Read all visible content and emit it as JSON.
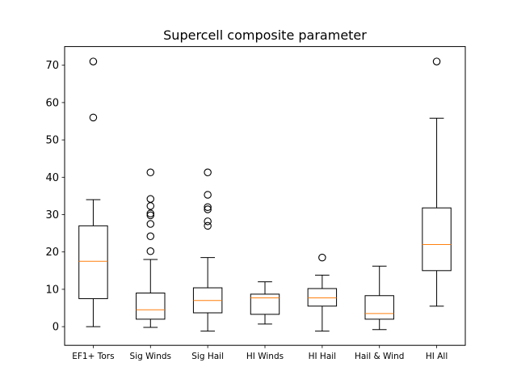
{
  "chart_data": {
    "type": "boxplot",
    "title": "Supercell composite parameter",
    "xlabel": "",
    "ylabel": "",
    "ylim": [
      -5,
      75
    ],
    "yticks": [
      "0",
      "10",
      "20",
      "30",
      "40",
      "50",
      "60",
      "70"
    ],
    "ytick_values": [
      0,
      10,
      20,
      30,
      40,
      50,
      60,
      70
    ],
    "categories": [
      "EF1+ Tors",
      "Sig Winds",
      "Sig Hail",
      "HI Winds",
      "HI Hail",
      "Hail & Wind",
      "HI All"
    ],
    "box_color": "#000000",
    "median_color": "#ff7f0e",
    "grid": false,
    "series": [
      {
        "category": "EF1+ Tors",
        "whisker_low": 0,
        "q1": 7.5,
        "median": 17.5,
        "q3": 27,
        "whisker_high": 34,
        "outliers": [
          56,
          71
        ]
      },
      {
        "category": "Sig Winds",
        "whisker_low": -0.2,
        "q1": 2,
        "median": 4.5,
        "q3": 9,
        "whisker_high": 18,
        "outliers": [
          20.2,
          24.2,
          27.5,
          29.8,
          30.3,
          32.3,
          34.2,
          41.3
        ]
      },
      {
        "category": "Sig Hail",
        "whisker_low": -1.2,
        "q1": 3.7,
        "median": 7,
        "q3": 10.4,
        "whisker_high": 18.5,
        "outliers": [
          27,
          28.2,
          31.4,
          32,
          35.3,
          41.3
        ]
      },
      {
        "category": "HI Winds",
        "whisker_low": 0.7,
        "q1": 3.3,
        "median": 7.7,
        "q3": 8.7,
        "whisker_high": 12,
        "outliers": []
      },
      {
        "category": "HI Hail",
        "whisker_low": -1.2,
        "q1": 5.5,
        "median": 7.7,
        "q3": 10.2,
        "whisker_high": 13.8,
        "outliers": [
          18.5
        ]
      },
      {
        "category": "Hail & Wind",
        "whisker_low": -0.8,
        "q1": 2,
        "median": 3.5,
        "q3": 8.3,
        "whisker_high": 16.2,
        "outliers": []
      },
      {
        "category": "HI All",
        "whisker_low": 5.5,
        "q1": 15,
        "median": 22,
        "q3": 31.8,
        "whisker_high": 55.8,
        "outliers": [
          71
        ]
      }
    ]
  }
}
